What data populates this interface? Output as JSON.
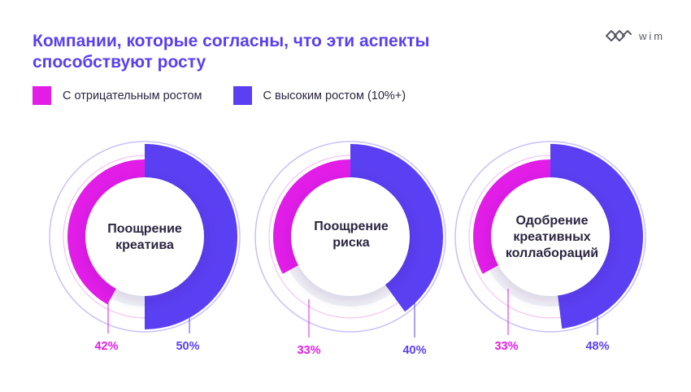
{
  "title": {
    "line1": "Компании, которые согласны, что эти аспекты",
    "line2": "способствуют росту"
  },
  "logo": {
    "text": "wim",
    "icon": "wim-logo-icon"
  },
  "colors": {
    "title": "#5a3ff0",
    "negative": "#e21de8",
    "high": "#5b3ff2",
    "outline_negative": "#f4c4f2",
    "outline_high": "#c9c0fa",
    "gap": "#f1f1f5"
  },
  "legend": [
    {
      "label": "С отрицательным ростом",
      "color": "#e21de8"
    },
    {
      "label": "С высоким ростом (10%+)",
      "color": "#5b3ff2"
    }
  ],
  "chart_data": {
    "type": "donut",
    "series": [
      {
        "name": "С отрицательным ростом",
        "values": [
          42,
          33,
          33
        ]
      },
      {
        "name": "С высоким ростом (10%+)",
        "values": [
          50,
          40,
          48
        ]
      }
    ],
    "charts": [
      {
        "label_lines": [
          "Поощрение",
          "креатива"
        ],
        "negative": 42,
        "high": 50,
        "negative_label": "42%",
        "high_label": "50%"
      },
      {
        "label_lines": [
          "Поощрение",
          "риска"
        ],
        "negative": 33,
        "high": 40,
        "negative_label": "33%",
        "high_label": "40%"
      },
      {
        "label_lines": [
          "Одобрение",
          "креативных",
          "коллабораций"
        ],
        "negative": 33,
        "high": 48,
        "negative_label": "33%",
        "high_label": "48%"
      }
    ]
  }
}
